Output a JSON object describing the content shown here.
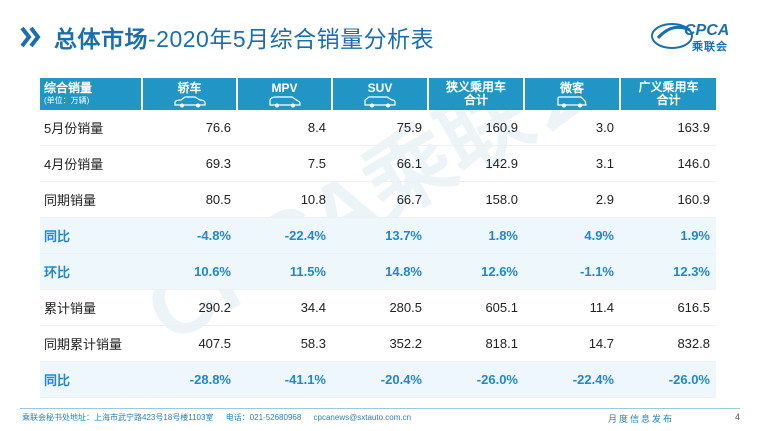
{
  "title": {
    "bold": "总体市场",
    "rest": "-2020年5月综合销量分析表"
  },
  "logo": {
    "text": "CPCA",
    "name_cn": "乘联会"
  },
  "watermark": "CPCA乘联会",
  "table": {
    "corner_label": "综合销量",
    "corner_unit": "(单位：万辆)",
    "columns": [
      {
        "label": "轿车",
        "icon": "sedan-icon"
      },
      {
        "label": "MPV",
        "icon": "mpv-icon"
      },
      {
        "label": "SUV",
        "icon": "suv-icon"
      },
      {
        "label": "狭义乘用车合计",
        "line1": "狭义乘用车",
        "line2": "合计"
      },
      {
        "label": "微客",
        "icon": "minibus-icon"
      },
      {
        "label": "广义乘用车合计",
        "line1": "广义乘用车",
        "line2": "合计"
      }
    ],
    "rows": [
      {
        "label": "5月份销量",
        "values": [
          "76.6",
          "8.4",
          "75.9",
          "160.9",
          "3.0",
          "163.9"
        ],
        "highlight": false
      },
      {
        "label": "4月份销量",
        "values": [
          "69.3",
          "7.5",
          "66.1",
          "142.9",
          "3.1",
          "146.0"
        ],
        "highlight": false
      },
      {
        "label": "同期销量",
        "values": [
          "80.5",
          "10.8",
          "66.7",
          "158.0",
          "2.9",
          "160.9"
        ],
        "highlight": false
      },
      {
        "label": "同比",
        "values": [
          "-4.8%",
          "-22.4%",
          "13.7%",
          "1.8%",
          "4.9%",
          "1.9%"
        ],
        "highlight": true
      },
      {
        "label": "环比",
        "values": [
          "10.6%",
          "11.5%",
          "14.8%",
          "12.6%",
          "-1.1%",
          "12.3%"
        ],
        "highlight": true
      },
      {
        "label": "累计销量",
        "values": [
          "290.2",
          "34.4",
          "280.5",
          "605.1",
          "11.4",
          "616.5"
        ],
        "highlight": false
      },
      {
        "label": "同期累计销量",
        "values": [
          "407.5",
          "58.3",
          "352.2",
          "818.1",
          "14.7",
          "832.8"
        ],
        "highlight": false
      },
      {
        "label": "同比",
        "values": [
          "-28.8%",
          "-41.1%",
          "-20.4%",
          "-26.0%",
          "-22.4%",
          "-26.0%"
        ],
        "highlight": true
      }
    ]
  },
  "footer": {
    "address": "乘联会秘书处地址：上海市武宁路423号18号楼1103室",
    "phone": "电话：021-52680968",
    "email": "cpcanews@sxtauto.com.cn",
    "monthly": "月度信息发布",
    "page": "4"
  },
  "colors": {
    "header": "#2196c4",
    "highlight_text": "#1e88d2",
    "highlight_bg": "#eef7fc",
    "title": "#1a6fae"
  }
}
